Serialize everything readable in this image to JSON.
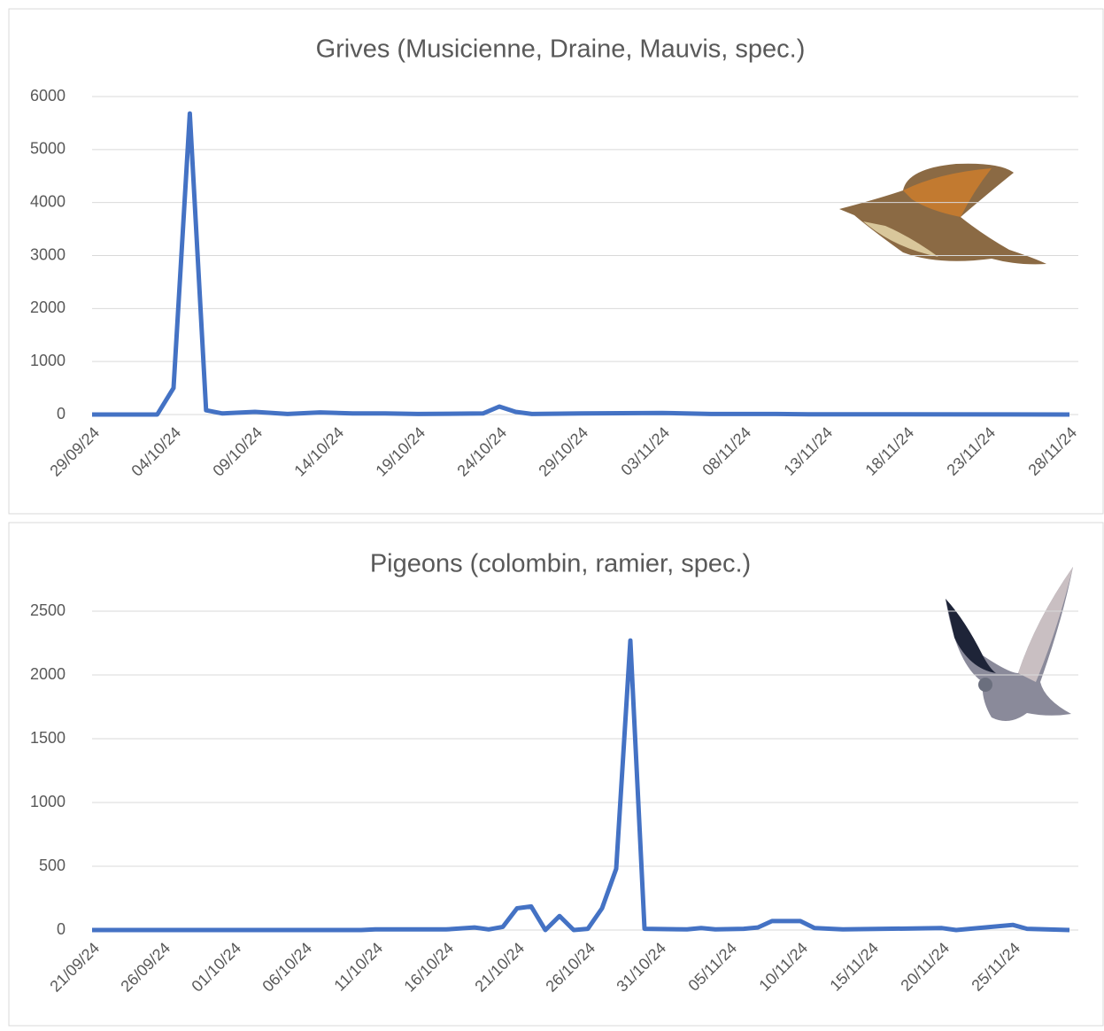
{
  "chart_data": [
    {
      "type": "line",
      "title": "Grives (Musicienne, Draine, Mauvis, spec.)",
      "x": [
        "29/09/24",
        "03/10/24",
        "04/10/24",
        "05/10/24",
        "06/10/24",
        "07/10/24",
        "09/10/24",
        "11/10/24",
        "13/10/24",
        "15/10/24",
        "17/10/24",
        "19/10/24",
        "23/10/24",
        "24/10/24",
        "25/10/24",
        "26/10/24",
        "29/10/24",
        "03/11/24",
        "06/11/24",
        "10/11/24",
        "12/11/24",
        "28/11/24"
      ],
      "series": [
        {
          "name": "Grives",
          "color": "#4472c4",
          "values": [
            0,
            0,
            500,
            5680,
            80,
            20,
            50,
            10,
            40,
            20,
            20,
            10,
            20,
            150,
            50,
            10,
            20,
            30,
            10,
            10,
            5,
            0
          ]
        }
      ],
      "xlim": [
        "29/09/24",
        "28/11/24"
      ],
      "xticks": [
        "29/09/24",
        "04/10/24",
        "09/10/24",
        "14/10/24",
        "19/10/24",
        "24/10/24",
        "29/10/24",
        "03/11/24",
        "08/11/24",
        "13/11/24",
        "18/11/24",
        "23/11/24",
        "28/11/24"
      ],
      "ylim": [
        0,
        6000
      ],
      "yticks": [
        0,
        1000,
        2000,
        3000,
        4000,
        5000,
        6000
      ],
      "grid": true
    },
    {
      "type": "line",
      "title": "Pigeons (colombin, ramier, spec.)",
      "x": [
        "21/09/24",
        "10/10/24",
        "11/10/24",
        "14/10/24",
        "16/10/24",
        "18/10/24",
        "19/10/24",
        "20/10/24",
        "21/10/24",
        "22/10/24",
        "23/10/24",
        "24/10/24",
        "25/10/24",
        "26/10/24",
        "27/10/24",
        "28/10/24",
        "29/10/24",
        "30/10/24",
        "02/11/24",
        "03/11/24",
        "04/11/24",
        "06/11/24",
        "07/11/24",
        "08/11/24",
        "10/11/24",
        "11/11/24",
        "13/11/24",
        "20/11/24",
        "21/11/24",
        "25/11/24",
        "26/11/24",
        "29/11/24"
      ],
      "series": [
        {
          "name": "Pigeons",
          "color": "#4472c4",
          "values": [
            0,
            0,
            5,
            5,
            5,
            20,
            5,
            25,
            170,
            185,
            0,
            110,
            0,
            10,
            170,
            480,
            2270,
            10,
            5,
            15,
            5,
            10,
            20,
            70,
            70,
            15,
            5,
            15,
            0,
            40,
            10,
            0
          ]
        }
      ],
      "xlim": [
        "21/09/24",
        "29/11/24"
      ],
      "xticks": [
        "21/09/24",
        "26/09/24",
        "01/10/24",
        "06/10/24",
        "11/10/24",
        "16/10/24",
        "21/10/24",
        "26/10/24",
        "31/10/24",
        "05/11/24",
        "10/11/24",
        "15/11/24",
        "20/11/24",
        "25/11/24"
      ],
      "ylim": [
        0,
        2500
      ],
      "yticks": [
        0,
        500,
        1000,
        1500,
        2000,
        2500
      ],
      "grid": true
    }
  ]
}
